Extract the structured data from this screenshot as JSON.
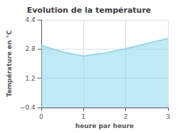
{
  "chart_data": {
    "type": "line",
    "title": "Evolution de la température",
    "xlabel": "heure par heure",
    "ylabel": "Température en °C",
    "x": [
      0,
      0.5,
      1.0,
      1.5,
      2.0,
      2.5,
      3.0
    ],
    "values": [
      3.0,
      2.65,
      2.42,
      2.58,
      2.82,
      3.1,
      3.38
    ],
    "color": "#80d4ea",
    "xlim": [
      0,
      3
    ],
    "xticks": [
      0,
      1,
      2,
      3
    ],
    "ylim": [
      -0.4,
      4.4
    ],
    "yticks": [
      {
        "value": -0.4,
        "label": "−0.4"
      },
      1.2,
      2.8,
      4.4
    ],
    "grid": true
  }
}
